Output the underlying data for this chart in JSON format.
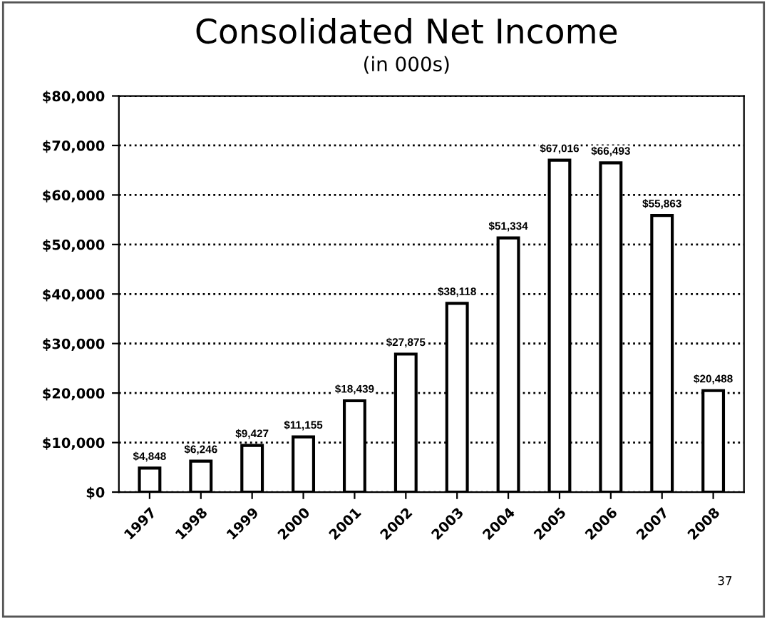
{
  "chart_data": {
    "type": "bar",
    "title": "Consolidated Net Income",
    "subtitle": "(in 000s)",
    "categories": [
      "1997",
      "1998",
      "1999",
      "2000",
      "2001",
      "2002",
      "2003",
      "2004",
      "2005",
      "2006",
      "2007",
      "2008"
    ],
    "values": [
      4848,
      6246,
      9427,
      11155,
      18439,
      27875,
      38118,
      51334,
      67016,
      66493,
      55863,
      20488
    ],
    "value_labels": [
      "$4,848",
      "$6,246",
      "$9,427",
      "$11,155",
      "$18,439",
      "$27,875",
      "$38,118",
      "$51,334",
      "$67,016",
      "$66,493",
      "$55,863",
      "$20,488"
    ],
    "color": "#ffffff",
    "ylim": [
      0,
      80000
    ],
    "yticks": [
      {
        "value": 0,
        "label": "$0"
      },
      {
        "value": 10000,
        "label": "$10,000"
      },
      {
        "value": 20000,
        "label": "$20,000"
      },
      {
        "value": 30000,
        "label": "$30,000"
      },
      {
        "value": 40000,
        "label": "$40,000"
      },
      {
        "value": 50000,
        "label": "$50,000"
      },
      {
        "value": 60000,
        "label": "$60,000"
      },
      {
        "value": 70000,
        "label": "$70,000"
      },
      {
        "value": 80000,
        "label": "$80,000"
      }
    ],
    "grid": "y",
    "annotations": [
      "37"
    ]
  }
}
